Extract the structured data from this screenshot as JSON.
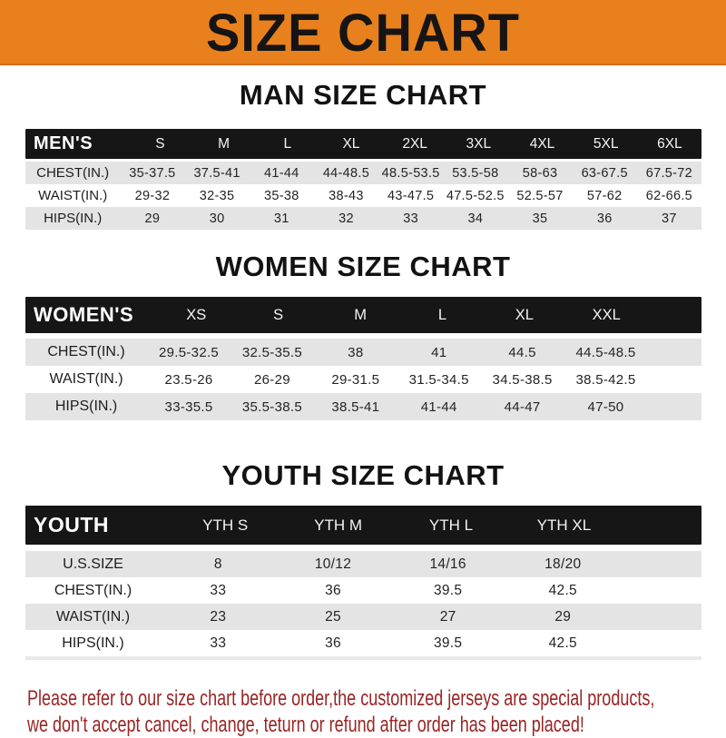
{
  "banner": {
    "title": "SIZE CHART",
    "bg_color": "#e8811d",
    "text_color": "#161414"
  },
  "sections": [
    {
      "id": "men",
      "heading": "MAN SIZE CHART",
      "table": {
        "header_label": "MEN'S",
        "columns": [
          "S",
          "M",
          "L",
          "XL",
          "2XL",
          "3XL",
          "4XL",
          "5XL",
          "6XL"
        ],
        "rows": [
          {
            "label": "CHEST(IN.)",
            "values": [
              "35-37.5",
              "37.5-41",
              "41-44",
              "44-48.5",
              "48.5-53.5",
              "53.5-58",
              "58-63",
              "63-67.5",
              "67.5-72"
            ]
          },
          {
            "label": "WAIST(IN.)",
            "values": [
              "29-32",
              "32-35",
              "35-38",
              "38-43",
              "43-47.5",
              "47.5-52.5",
              "52.5-57",
              "57-62",
              "62-66.5"
            ]
          },
          {
            "label": "HIPS(IN.)",
            "values": [
              "29",
              "30",
              "31",
              "32",
              "33",
              "34",
              "35",
              "36",
              "37"
            ]
          }
        ]
      }
    },
    {
      "id": "women",
      "heading": "WOMEN SIZE CHART",
      "table": {
        "header_label": "WOMEN'S",
        "columns": [
          "XS",
          "S",
          "M",
          "L",
          "XL",
          "XXL"
        ],
        "rows": [
          {
            "label": "CHEST(IN.)",
            "values": [
              "29.5-32.5",
              "32.5-35.5",
              "38",
              "41",
              "44.5",
              "44.5-48.5"
            ]
          },
          {
            "label": "WAIST(IN.)",
            "values": [
              "23.5-26",
              "26-29",
              "29-31.5",
              "31.5-34.5",
              "34.5-38.5",
              "38.5-42.5"
            ]
          },
          {
            "label": "HIPS(IN.)",
            "values": [
              "33-35.5",
              "35.5-38.5",
              "38.5-41",
              "41-44",
              "44-47",
              "47-50"
            ]
          }
        ]
      }
    },
    {
      "id": "youth",
      "heading": "YOUTH SIZE CHART",
      "table": {
        "header_label": "YOUTH",
        "columns": [
          "YTH S",
          "YTH M",
          "YTH L",
          "YTH XL"
        ],
        "rows": [
          {
            "label": "U.S.SIZE",
            "values": [
              "8",
              "10/12",
              "14/16",
              "18/20"
            ]
          },
          {
            "label": "CHEST(IN.)",
            "values": [
              "33",
              "36",
              "39.5",
              "42.5"
            ]
          },
          {
            "label": "WAIST(IN.)",
            "values": [
              "23",
              "25",
              "27",
              "29"
            ]
          },
          {
            "label": "HIPS(IN.)",
            "values": [
              "33",
              "36",
              "39.5",
              "42.5"
            ]
          }
        ]
      }
    }
  ],
  "footer": {
    "lines": [
      "Please refer to our size chart before order,the customized jerseys are special products,",
      "we don't accept cancel, change, teturn or refund after order has been placed!"
    ],
    "text_color": "#992525"
  }
}
